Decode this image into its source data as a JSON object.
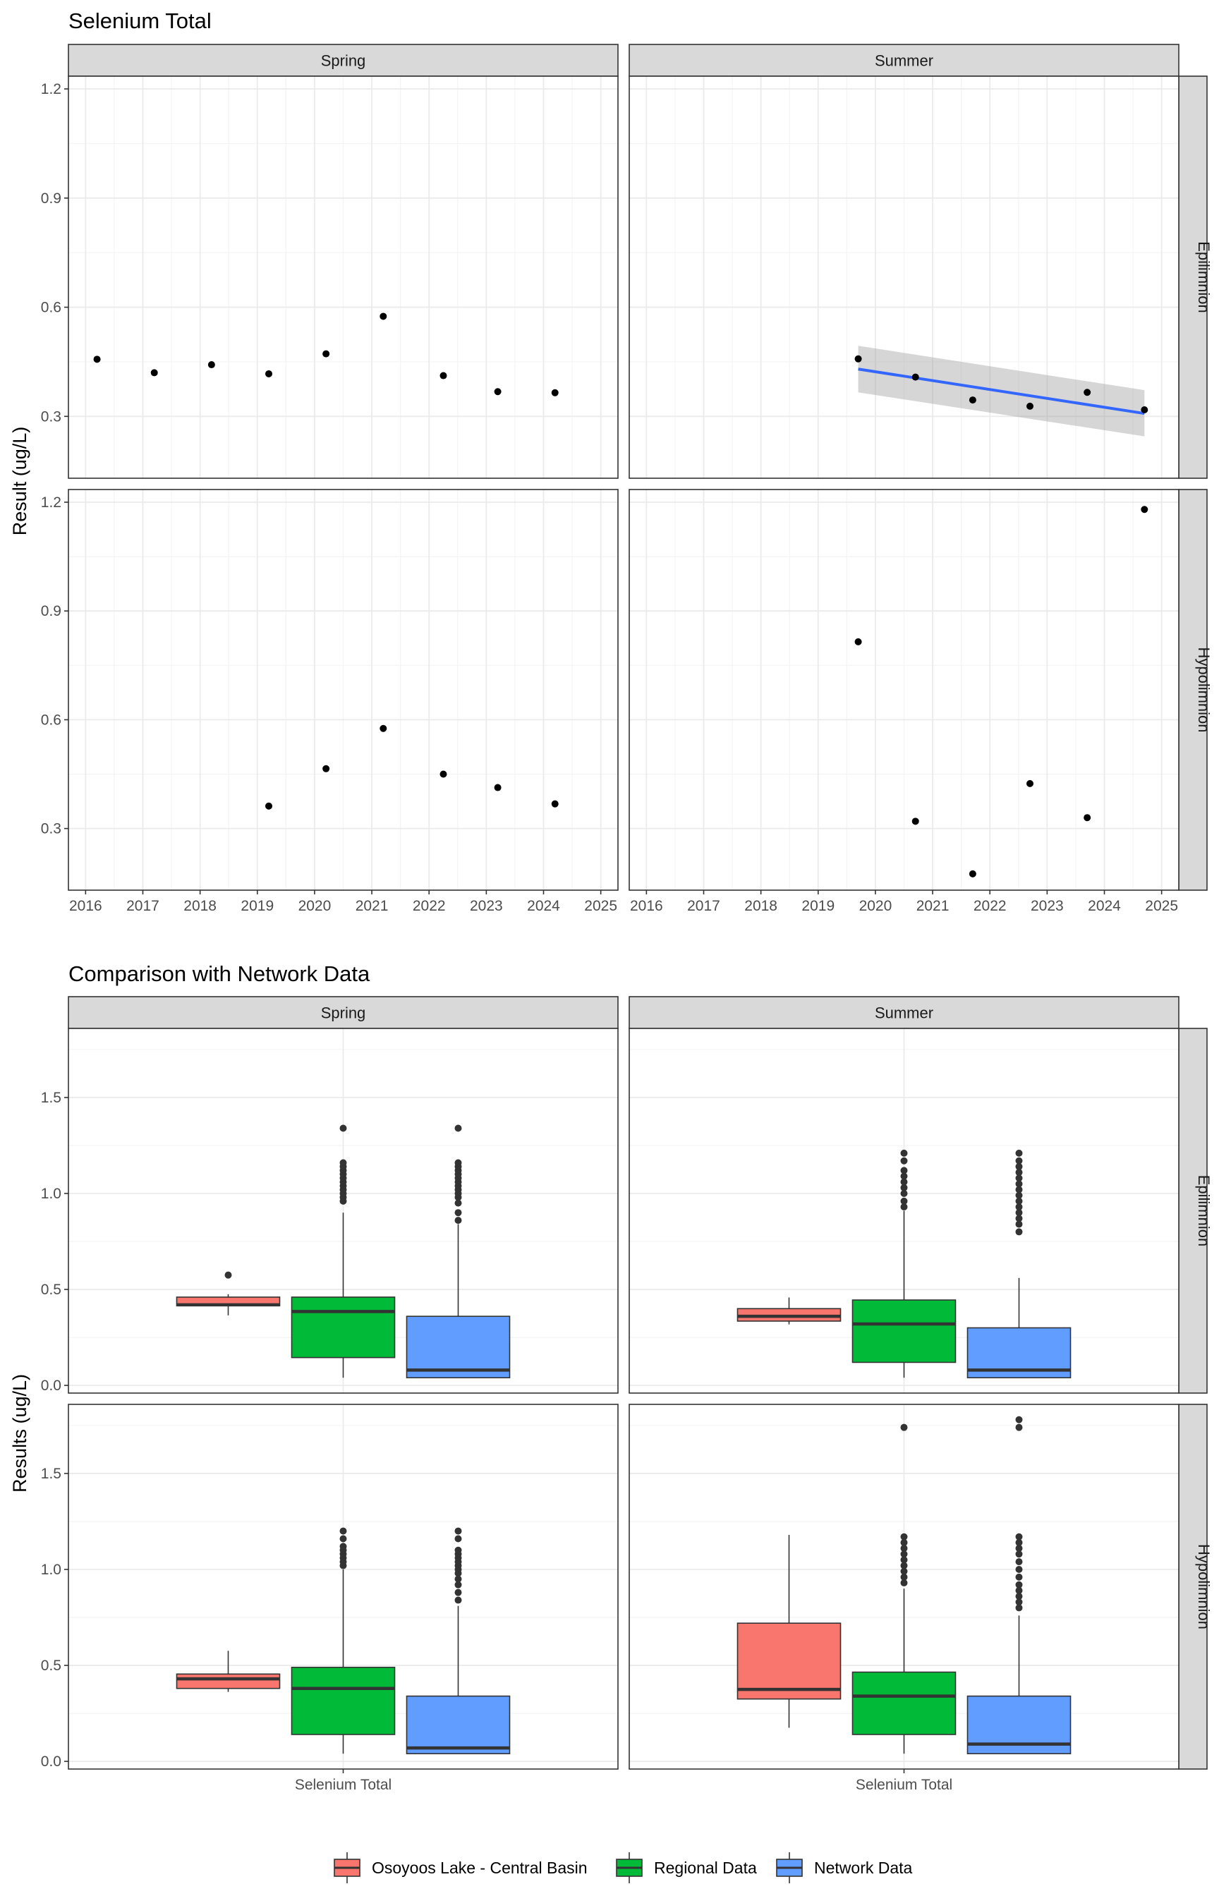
{
  "chart_data": [
    {
      "type": "scatter",
      "title": "Selenium Total",
      "ylabel": "Result (ug/L)",
      "xlabel": "",
      "col_facets": [
        "Spring",
        "Summer"
      ],
      "row_facets": [
        "Epilimnion",
        "Hypolimnion"
      ],
      "xlim": [
        2015.7,
        2025.3
      ],
      "ylim": [
        0.13,
        1.235
      ],
      "x_ticks": [
        2016,
        2017,
        2018,
        2019,
        2020,
        2021,
        2022,
        2023,
        2024,
        2025
      ],
      "y_ticks": [
        0.3,
        0.6,
        0.9,
        1.2
      ],
      "y_tick_labels": [
        "0.3",
        "0.6",
        "0.9",
        "1.2"
      ],
      "grid": true,
      "panels": [
        {
          "col": "Spring",
          "row": "Epilimnion",
          "points": [
            [
              2016.2,
              0.457
            ],
            [
              2017.2,
              0.42
            ],
            [
              2018.2,
              0.442
            ],
            [
              2019.2,
              0.417
            ],
            [
              2020.2,
              0.472
            ],
            [
              2021.2,
              0.575
            ],
            [
              2022.25,
              0.412
            ],
            [
              2023.2,
              0.368
            ],
            [
              2024.2,
              0.365
            ]
          ]
        },
        {
          "col": "Summer",
          "row": "Epilimnion",
          "points": [
            [
              2019.7,
              0.458
            ],
            [
              2020.7,
              0.408
            ],
            [
              2021.7,
              0.345
            ],
            [
              2022.7,
              0.328
            ],
            [
              2023.7,
              0.366
            ],
            [
              2024.7,
              0.318
            ]
          ],
          "trend": {
            "x": [
              2019.7,
              2024.7
            ],
            "y": [
              0.43,
              0.308
            ],
            "ci_lower": [
              0.366,
              0.245
            ],
            "ci_upper": [
              0.494,
              0.372
            ],
            "color": "#3366ff"
          }
        },
        {
          "col": "Spring",
          "row": "Hypolimnion",
          "points": [
            [
              2019.2,
              0.362
            ],
            [
              2020.2,
              0.465
            ],
            [
              2021.2,
              0.576
            ],
            [
              2022.25,
              0.45
            ],
            [
              2023.2,
              0.413
            ],
            [
              2024.2,
              0.368
            ]
          ]
        },
        {
          "col": "Summer",
          "row": "Hypolimnion",
          "points": [
            [
              2019.7,
              0.815
            ],
            [
              2020.7,
              0.32
            ],
            [
              2021.7,
              0.175
            ],
            [
              2022.7,
              0.424
            ],
            [
              2023.7,
              0.33
            ],
            [
              2024.7,
              1.18
            ]
          ]
        }
      ]
    },
    {
      "type": "box",
      "title": "Comparison with Network Data",
      "ylabel": "Results (ug/L)",
      "xlabel": "",
      "categories": [
        "Selenium Total"
      ],
      "col_facets": [
        "Spring",
        "Summer"
      ],
      "row_facets": [
        "Epilimnion",
        "Hypolimnion"
      ],
      "ylim": [
        -0.04,
        1.86
      ],
      "y_ticks": [
        0.0,
        0.5,
        1.0,
        1.5
      ],
      "y_tick_labels": [
        "0.0",
        "0.5",
        "1.0",
        "1.5"
      ],
      "grid": true,
      "legend": {
        "position": "bottom",
        "items": [
          {
            "name": "Osoyoos Lake - Central Basin",
            "color": "#f8766d"
          },
          {
            "name": "Regional Data",
            "color": "#00ba38"
          },
          {
            "name": "Network Data",
            "color": "#619cff"
          }
        ]
      },
      "panels": [
        {
          "col": "Spring",
          "row": "Epilimnion",
          "boxes": [
            {
              "series": "Osoyoos Lake - Central Basin",
              "min": 0.365,
              "q1": 0.415,
              "median": 0.42,
              "q3": 0.46,
              "max": 0.475,
              "outliers": [
                0.575
              ]
            },
            {
              "series": "Regional Data",
              "min": 0.04,
              "q1": 0.145,
              "median": 0.385,
              "q3": 0.46,
              "max": 0.9,
              "outliers": [
                0.96,
                0.98,
                1.0,
                1.02,
                1.04,
                1.06,
                1.08,
                1.1,
                1.12,
                1.14,
                1.16,
                1.34
              ]
            },
            {
              "series": "Network Data",
              "min": 0.04,
              "q1": 0.04,
              "median": 0.08,
              "q3": 0.36,
              "max": 0.84,
              "outliers": [
                0.86,
                0.9,
                0.95,
                0.98,
                1.0,
                1.02,
                1.04,
                1.06,
                1.08,
                1.1,
                1.12,
                1.14,
                1.16,
                1.34
              ]
            }
          ]
        },
        {
          "col": "Summer",
          "row": "Epilimnion",
          "boxes": [
            {
              "series": "Osoyoos Lake - Central Basin",
              "min": 0.318,
              "q1": 0.335,
              "median": 0.36,
              "q3": 0.4,
              "max": 0.458,
              "outliers": []
            },
            {
              "series": "Regional Data",
              "min": 0.04,
              "q1": 0.12,
              "median": 0.32,
              "q3": 0.445,
              "max": 0.91,
              "outliers": [
                0.93,
                0.96,
                1.0,
                1.03,
                1.06,
                1.09,
                1.12,
                1.17,
                1.21
              ]
            },
            {
              "series": "Network Data",
              "min": 0.04,
              "q1": 0.04,
              "median": 0.08,
              "q3": 0.3,
              "max": 0.56,
              "outliers": [
                0.8,
                0.84,
                0.87,
                0.9,
                0.93,
                0.96,
                0.99,
                1.02,
                1.05,
                1.08,
                1.11,
                1.14,
                1.17,
                1.21
              ]
            }
          ]
        },
        {
          "col": "Spring",
          "row": "Hypolimnion",
          "boxes": [
            {
              "series": "Osoyoos Lake - Central Basin",
              "min": 0.362,
              "q1": 0.38,
              "median": 0.43,
              "q3": 0.455,
              "max": 0.576,
              "outliers": []
            },
            {
              "series": "Regional Data",
              "min": 0.04,
              "q1": 0.14,
              "median": 0.38,
              "q3": 0.49,
              "max": 1.0,
              "outliers": [
                1.02,
                1.04,
                1.06,
                1.08,
                1.1,
                1.12,
                1.16,
                1.2
              ]
            },
            {
              "series": "Network Data",
              "min": 0.04,
              "q1": 0.04,
              "median": 0.07,
              "q3": 0.34,
              "max": 0.81,
              "outliers": [
                0.84,
                0.88,
                0.92,
                0.95,
                0.98,
                1.0,
                1.02,
                1.04,
                1.06,
                1.08,
                1.1,
                1.16,
                1.2
              ]
            }
          ]
        },
        {
          "col": "Summer",
          "row": "Hypolimnion",
          "boxes": [
            {
              "series": "Osoyoos Lake - Central Basin",
              "min": 0.175,
              "q1": 0.325,
              "median": 0.375,
              "q3": 0.72,
              "max": 1.18,
              "outliers": []
            },
            {
              "series": "Regional Data",
              "min": 0.04,
              "q1": 0.14,
              "median": 0.34,
              "q3": 0.465,
              "max": 0.9,
              "outliers": [
                0.93,
                0.96,
                0.99,
                1.02,
                1.05,
                1.08,
                1.11,
                1.14,
                1.17,
                1.74
              ]
            },
            {
              "series": "Network Data",
              "min": 0.04,
              "q1": 0.04,
              "median": 0.09,
              "q3": 0.34,
              "max": 0.76,
              "outliers": [
                0.8,
                0.83,
                0.86,
                0.89,
                0.92,
                0.96,
                1.0,
                1.04,
                1.08,
                1.11,
                1.14,
                1.17,
                1.74,
                1.78
              ]
            }
          ]
        }
      ]
    }
  ]
}
